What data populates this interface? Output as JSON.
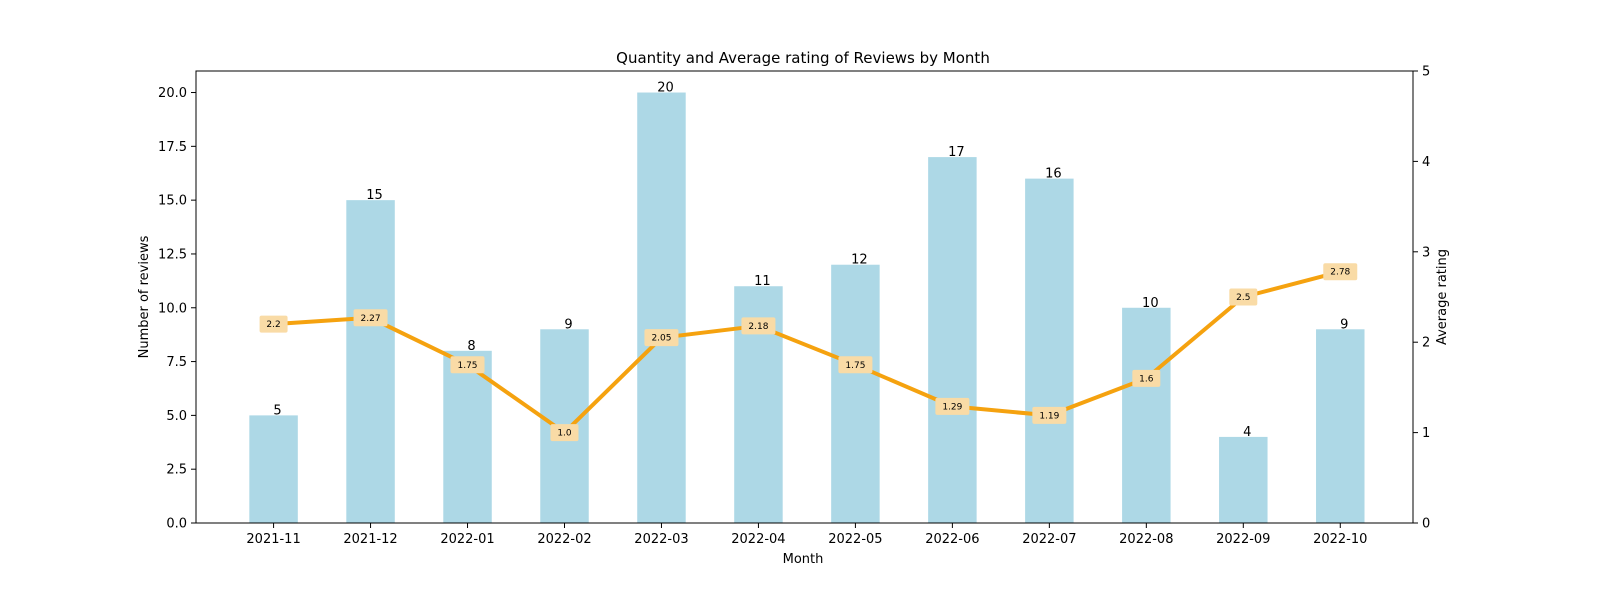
{
  "chart_data": {
    "type": "bar+line",
    "title": "Quantity and Average rating of Reviews by Month",
    "xlabel": "Month",
    "ylabel_left": "Number of reviews",
    "ylabel_right": "Average rating",
    "categories": [
      "2021-11",
      "2021-12",
      "2022-01",
      "2022-02",
      "2022-03",
      "2022-04",
      "2022-05",
      "2022-06",
      "2022-07",
      "2022-08",
      "2022-09",
      "2022-10"
    ],
    "bar_series": {
      "values": [
        5,
        15,
        8,
        9,
        20,
        11,
        12,
        17,
        16,
        10,
        4,
        9
      ],
      "labels": [
        "5",
        "15",
        "8",
        "9",
        "20",
        "11",
        "12",
        "17",
        "16",
        "10",
        "4",
        "9"
      ],
      "color": "#add8e6"
    },
    "line_series": {
      "values": [
        2.2,
        2.27,
        1.75,
        1.0,
        2.05,
        2.18,
        1.75,
        1.29,
        1.19,
        1.6,
        2.5,
        2.78
      ],
      "labels": [
        "2.2",
        "2.27",
        "1.75",
        "1.0",
        "2.05",
        "2.18",
        "1.75",
        "1.29",
        "1.19",
        "1.6",
        "2.5",
        "2.78"
      ],
      "color": "#f5a20f",
      "label_bg": "#f9dba6"
    },
    "ylim_left": [
      0,
      21
    ],
    "yticks_left": [
      "0.0",
      "2.5",
      "5.0",
      "7.5",
      "10.0",
      "12.5",
      "15.0",
      "17.5",
      "20.0"
    ],
    "ylim_right": [
      0,
      5
    ],
    "yticks_right": [
      "0",
      "1",
      "2",
      "3",
      "4",
      "5"
    ],
    "grid": false,
    "legend": "none"
  }
}
